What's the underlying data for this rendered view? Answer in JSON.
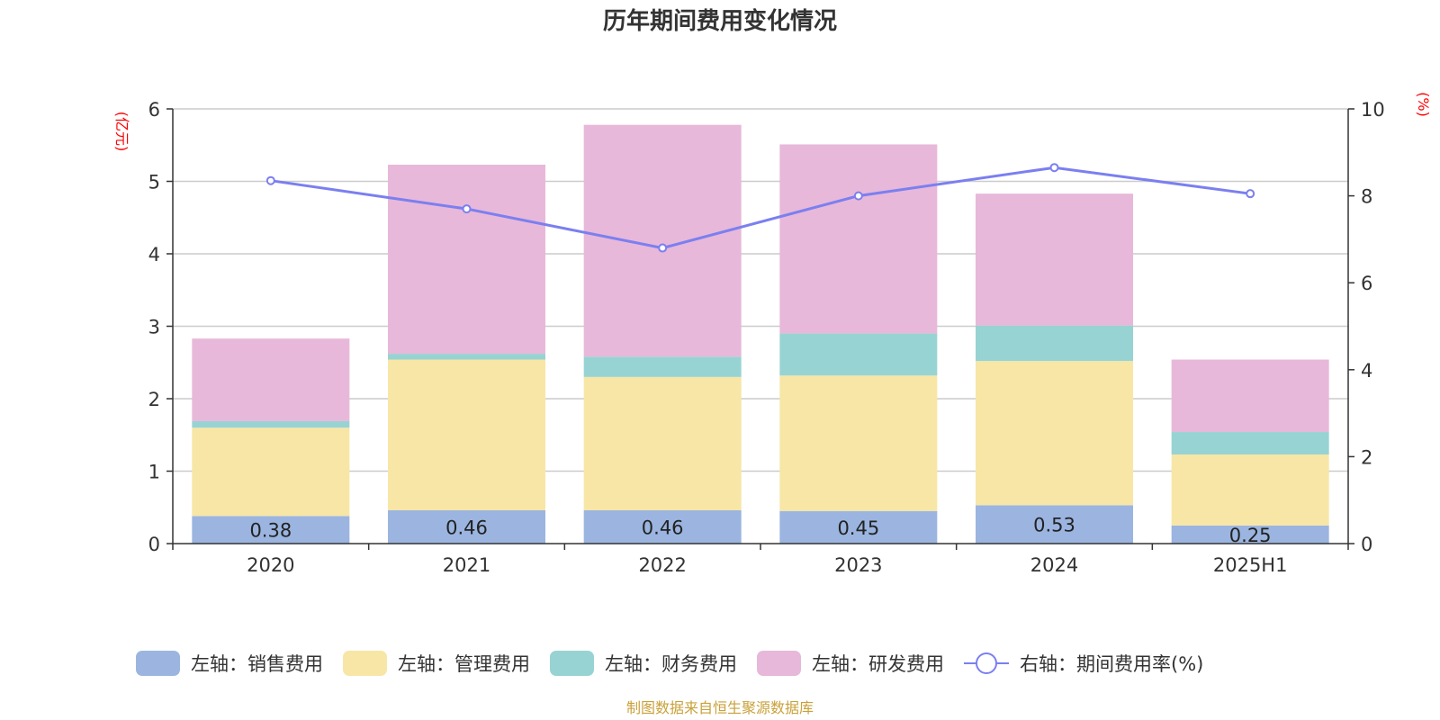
{
  "chart_data": {
    "type": "bar",
    "title": "历年期间费用变化情况",
    "left_unit": "(亿元)",
    "right_unit": "(%)",
    "categories": [
      "2020",
      "2021",
      "2022",
      "2023",
      "2024",
      "2025H1"
    ],
    "left_axis": {
      "ylim": [
        0,
        6
      ],
      "ticks": [
        "0",
        "1",
        "2",
        "3",
        "4",
        "5",
        "6"
      ]
    },
    "right_axis": {
      "ylim": [
        0,
        10
      ],
      "ticks": [
        "0",
        "2",
        "4",
        "6",
        "8",
        "10"
      ]
    },
    "grid": true,
    "stacked": true,
    "series": [
      {
        "name": "左轴：销售费用",
        "color": "#9bb5e0",
        "values": [
          0.38,
          0.46,
          0.46,
          0.45,
          0.53,
          0.25
        ],
        "labels": [
          "0.38",
          "0.46",
          "0.46",
          "0.45",
          "0.53",
          "0.25"
        ]
      },
      {
        "name": "左轴：管理费用",
        "color": "#f7e6a6",
        "values": [
          1.22,
          2.08,
          1.84,
          1.87,
          1.99,
          0.98
        ]
      },
      {
        "name": "左轴：财务费用",
        "color": "#98d3d3",
        "values": [
          0.09,
          0.08,
          0.28,
          0.58,
          0.49,
          0.31
        ]
      },
      {
        "name": "左轴：研发费用",
        "color": "#e7b8d9",
        "values": [
          1.14,
          2.61,
          3.2,
          2.61,
          1.82,
          1.0
        ]
      }
    ],
    "line_series": {
      "name": "右轴：期间费用率(%)",
      "color": "#7b7ff0",
      "values": [
        8.35,
        7.7,
        6.8,
        8.0,
        8.65,
        8.05
      ]
    },
    "legend_position": "bottom"
  },
  "footer": "制图数据来自恒生聚源数据库"
}
